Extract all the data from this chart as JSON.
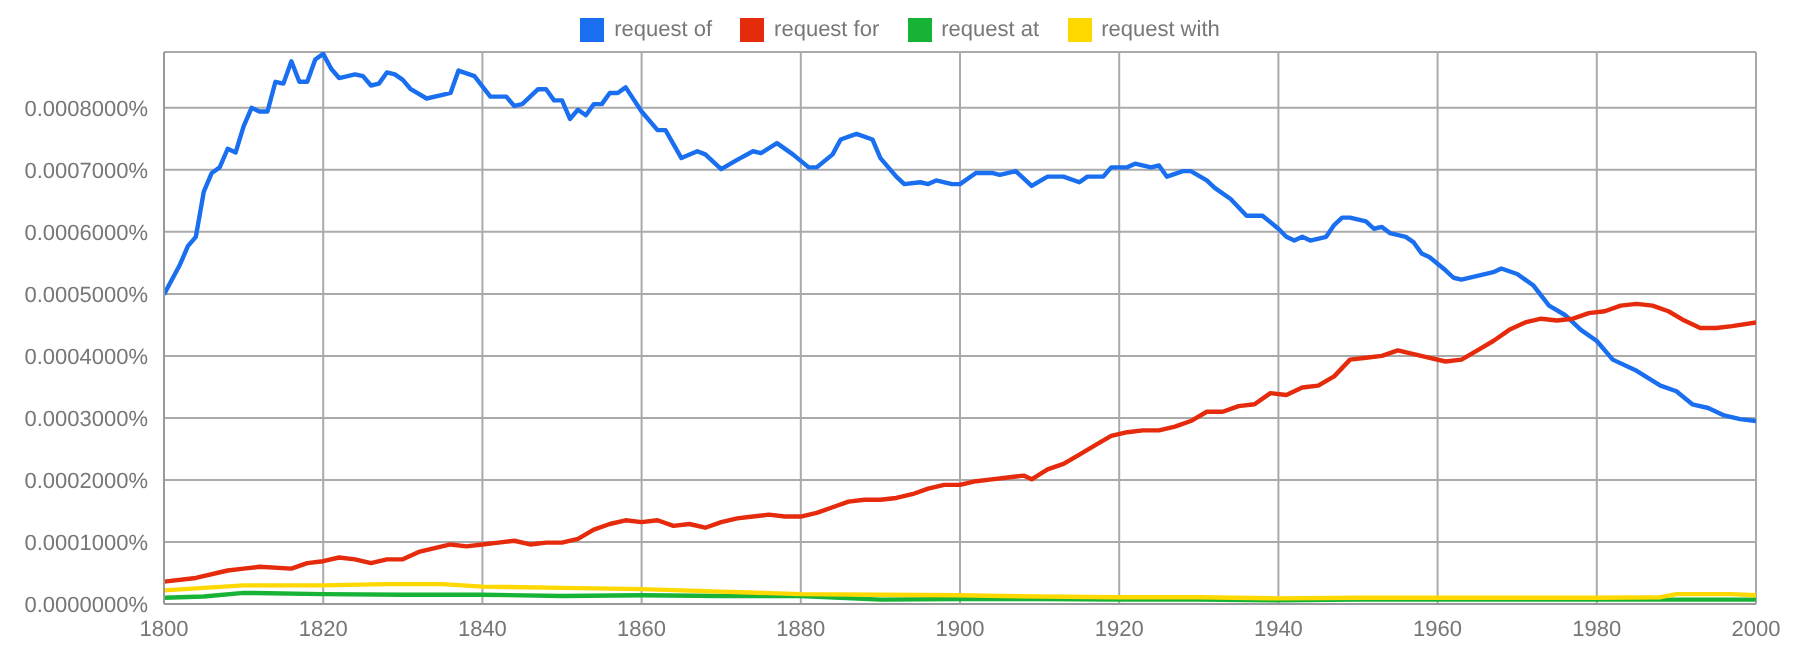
{
  "chart_data": {
    "type": "line",
    "xlim": [
      1800,
      2000
    ],
    "xticks": [
      1800,
      1820,
      1840,
      1860,
      1880,
      1900,
      1920,
      1940,
      1960,
      1980,
      2000
    ],
    "ylim": [
      0,
      0.00089
    ],
    "yticks": [
      {
        "value": 0,
        "label": "0.0000000%"
      },
      {
        "value": 0.0001,
        "label": "0.0001000%"
      },
      {
        "value": 0.0002,
        "label": "0.0002000%"
      },
      {
        "value": 0.0003,
        "label": "0.0003000%"
      },
      {
        "value": 0.0004,
        "label": "0.0004000%"
      },
      {
        "value": 0.0005,
        "label": "0.0005000%"
      },
      {
        "value": 0.0006,
        "label": "0.0006000%"
      },
      {
        "value": 0.0007,
        "label": "0.0007000%"
      },
      {
        "value": 0.0008,
        "label": "0.0008000%"
      }
    ],
    "grid": true,
    "legend": "top",
    "marker": "none",
    "line_style": "solid",
    "series": [
      {
        "name": "request of",
        "color": "#1a6ff0",
        "x": [
          1800,
          1802,
          1803,
          1804,
          1805,
          1806,
          1807,
          1808,
          1809,
          1810,
          1811,
          1812,
          1813,
          1814,
          1815,
          1816,
          1817,
          1818,
          1819,
          1820,
          1821,
          1822,
          1824,
          1825,
          1826,
          1827,
          1828,
          1829,
          1830,
          1831,
          1833,
          1835,
          1836,
          1837,
          1839,
          1841,
          1843,
          1844,
          1845,
          1847,
          1848,
          1849,
          1850,
          1851,
          1852,
          1853,
          1854,
          1855,
          1856,
          1857,
          1858,
          1860,
          1862,
          1863,
          1865,
          1867,
          1868,
          1870,
          1872,
          1874,
          1875,
          1877,
          1879,
          1881,
          1882,
          1884,
          1885,
          1887,
          1889,
          1890,
          1892,
          1893,
          1895,
          1896,
          1897,
          1899,
          1900,
          1902,
          1904,
          1905,
          1907,
          1909,
          1911,
          1913,
          1915,
          1916,
          1918,
          1919,
          1921,
          1922,
          1924,
          1925,
          1926,
          1928,
          1929,
          1931,
          1932,
          1934,
          1936,
          1938,
          1940,
          1941,
          1942,
          1943,
          1944,
          1946,
          1947,
          1948,
          1949,
          1951,
          1952,
          1953,
          1954,
          1956,
          1957,
          1958,
          1959,
          1961,
          1962,
          1963,
          1965,
          1967,
          1968,
          1970,
          1972,
          1974,
          1976,
          1978,
          1980,
          1982,
          1985,
          1988,
          1990,
          1992,
          1994,
          1996,
          1998,
          2000
        ],
        "values": [
          0.000499,
          0.000547,
          0.000577,
          0.000592,
          0.000665,
          0.000695,
          0.000704,
          0.000734,
          0.000728,
          0.00077,
          0.0008,
          0.000794,
          0.000794,
          0.000842,
          0.000839,
          0.000875,
          0.000842,
          0.000842,
          0.000878,
          0.000887,
          0.000863,
          0.000848,
          0.000854,
          0.000851,
          0.000836,
          0.000839,
          0.000857,
          0.000854,
          0.000845,
          0.00083,
          0.000815,
          0.000821,
          0.000824,
          0.00086,
          0.000851,
          0.000818,
          0.000818,
          0.000803,
          0.000806,
          0.00083,
          0.00083,
          0.000812,
          0.000812,
          0.000782,
          0.000797,
          0.000788,
          0.000806,
          0.000806,
          0.000824,
          0.000824,
          0.000833,
          0.000794,
          0.000764,
          0.000764,
          0.000719,
          0.00073,
          0.000725,
          0.000701,
          0.000716,
          0.00073,
          0.000727,
          0.000743,
          0.000725,
          0.000704,
          0.000704,
          0.000725,
          0.000749,
          0.000758,
          0.000749,
          0.000719,
          0.000689,
          0.000677,
          0.00068,
          0.000677,
          0.000683,
          0.000677,
          0.000677,
          0.000695,
          0.000695,
          0.000692,
          0.000698,
          0.000674,
          0.000689,
          0.000689,
          0.00068,
          0.000689,
          0.000689,
          0.000704,
          0.000704,
          0.00071,
          0.000704,
          0.000707,
          0.000689,
          0.000698,
          0.000698,
          0.000683,
          0.000671,
          0.000653,
          0.000626,
          0.000626,
          0.000605,
          0.000592,
          0.000586,
          0.000592,
          0.000586,
          0.000592,
          0.000611,
          0.000623,
          0.000623,
          0.000617,
          0.000605,
          0.000608,
          0.000598,
          0.000592,
          0.000583,
          0.000565,
          0.000559,
          0.000538,
          0.000526,
          0.000523,
          0.000529,
          0.000535,
          0.000541,
          0.000532,
          0.000514,
          0.000481,
          0.000466,
          0.000442,
          0.000424,
          0.000394,
          0.000376,
          0.000352,
          0.000343,
          0.000322,
          0.000316,
          0.000304,
          0.000298,
          0.000295
        ]
      },
      {
        "name": "request for",
        "color": "#e52b0c",
        "x": [
          1800,
          1804,
          1808,
          1810,
          1812,
          1816,
          1818,
          1820,
          1822,
          1824,
          1826,
          1828,
          1830,
          1832,
          1834,
          1836,
          1838,
          1840,
          1842,
          1844,
          1846,
          1848,
          1850,
          1852,
          1854,
          1856,
          1858,
          1860,
          1862,
          1864,
          1866,
          1868,
          1870,
          1872,
          1874,
          1876,
          1878,
          1880,
          1882,
          1884,
          1886,
          1888,
          1890,
          1892,
          1894,
          1896,
          1898,
          1900,
          1902,
          1904,
          1906,
          1908,
          1909,
          1911,
          1913,
          1915,
          1917,
          1919,
          1921,
          1923,
          1925,
          1927,
          1929,
          1931,
          1933,
          1935,
          1937,
          1939,
          1941,
          1943,
          1945,
          1947,
          1949,
          1951,
          1953,
          1955,
          1957,
          1959,
          1961,
          1963,
          1965,
          1967,
          1969,
          1971,
          1973,
          1975,
          1977,
          1979,
          1981,
          1983,
          1985,
          1987,
          1989,
          1991,
          1993,
          1995,
          1997,
          2000
        ],
        "values": [
          3.6e-05,
          4.2e-05,
          5.4e-05,
          5.7e-05,
          6e-05,
          5.7e-05,
          6.6e-05,
          6.9e-05,
          7.5e-05,
          7.2e-05,
          6.6e-05,
          7.2e-05,
          7.2e-05,
          8.4e-05,
          9e-05,
          9.6e-05,
          9.3e-05,
          9.6e-05,
          9.9e-05,
          0.000102,
          9.6e-05,
          9.9e-05,
          9.9e-05,
          0.000105,
          0.00012,
          0.000129,
          0.000135,
          0.000132,
          0.000135,
          0.000126,
          0.000129,
          0.000123,
          0.000132,
          0.000138,
          0.000141,
          0.000144,
          0.000141,
          0.000141,
          0.000147,
          0.000156,
          0.000165,
          0.000168,
          0.000168,
          0.000171,
          0.000177,
          0.000186,
          0.000192,
          0.000192,
          0.000198,
          0.000201,
          0.000204,
          0.000207,
          0.000201,
          0.000217,
          0.000226,
          0.000241,
          0.000256,
          0.000271,
          0.000277,
          0.00028,
          0.00028,
          0.000286,
          0.000295,
          0.00031,
          0.00031,
          0.000319,
          0.000322,
          0.00034,
          0.000337,
          0.000349,
          0.000352,
          0.000367,
          0.000394,
          0.000397,
          0.0004,
          0.000409,
          0.000403,
          0.000397,
          0.000391,
          0.000394,
          0.000409,
          0.000424,
          0.000442,
          0.000454,
          0.00046,
          0.000457,
          0.00046,
          0.000469,
          0.000472,
          0.000481,
          0.000484,
          0.000481,
          0.000472,
          0.000457,
          0.000445,
          0.000445,
          0.000448,
          0.000454
        ]
      },
      {
        "name": "request at",
        "color": "#17b336",
        "x": [
          1800,
          1805,
          1810,
          1820,
          1830,
          1840,
          1850,
          1860,
          1870,
          1880,
          1890,
          1900,
          1910,
          1920,
          1930,
          1940,
          1950,
          1960,
          1970,
          1980,
          1990,
          2000
        ],
        "values": [
          1e-05,
          1.2e-05,
          1.8e-05,
          1.6e-05,
          1.5e-05,
          1.5e-05,
          1.3e-05,
          1.4e-05,
          1.3e-05,
          1.3e-05,
          7e-06,
          8e-06,
          8e-06,
          7e-06,
          7e-06,
          6e-06,
          7e-06,
          7e-06,
          7e-06,
          7e-06,
          7e-06,
          7e-06
        ]
      },
      {
        "name": "request with",
        "color": "#ffd800",
        "x": [
          1800,
          1805,
          1810,
          1820,
          1828,
          1835,
          1840,
          1850,
          1860,
          1870,
          1880,
          1890,
          1900,
          1910,
          1920,
          1930,
          1940,
          1950,
          1960,
          1970,
          1980,
          1988,
          1990,
          1997,
          2000
        ],
        "values": [
          2.2e-05,
          2.6e-05,
          3e-05,
          3e-05,
          3.2e-05,
          3.2e-05,
          2.8e-05,
          2.6e-05,
          2.4e-05,
          2e-05,
          1.6e-05,
          1.5e-05,
          1.4e-05,
          1.2e-05,
          1.1e-05,
          1.1e-05,
          9e-06,
          1e-05,
          1e-05,
          1e-05,
          1e-05,
          1.1e-05,
          1.6e-05,
          1.6e-05,
          1.4e-05
        ]
      }
    ]
  }
}
